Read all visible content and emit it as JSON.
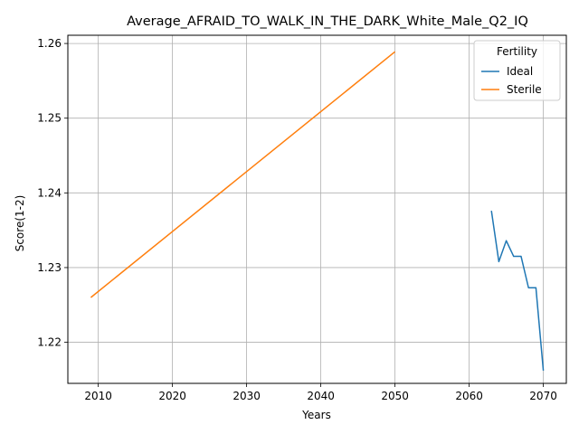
{
  "chart_data": {
    "type": "line",
    "title": "Average_AFRAID_TO_WALK_IN_THE_DARK_White_Male_Q2_IQ",
    "xlabel": "Years",
    "ylabel": "Score(1-2)",
    "xlim": [
      2005.9,
      2073.1
    ],
    "ylim": [
      1.2145,
      1.2611
    ],
    "xticks": [
      2010,
      2020,
      2030,
      2040,
      2050,
      2060,
      2070
    ],
    "yticks": [
      1.22,
      1.23,
      1.24,
      1.25,
      1.26
    ],
    "xtick_labels": [
      "2010",
      "2020",
      "2030",
      "2040",
      "2050",
      "2060",
      "2070"
    ],
    "ytick_labels": [
      "1.22",
      "1.23",
      "1.24",
      "1.25",
      "1.26"
    ],
    "grid": true,
    "legend": {
      "title": "Fertility",
      "placement": "top-right"
    },
    "series": [
      {
        "name": "Ideal",
        "color": "#1f77b4",
        "x": [
          2063,
          2064,
          2065,
          2066,
          2067,
          2068,
          2069,
          2070
        ],
        "y": [
          1.2376,
          1.2308,
          1.2336,
          1.2315,
          1.2315,
          1.2273,
          1.2273,
          1.2162
        ]
      },
      {
        "name": "Sterile",
        "color": "#ff7f0e",
        "x": [
          2009,
          2050
        ],
        "y": [
          1.226,
          1.2589
        ]
      }
    ]
  }
}
